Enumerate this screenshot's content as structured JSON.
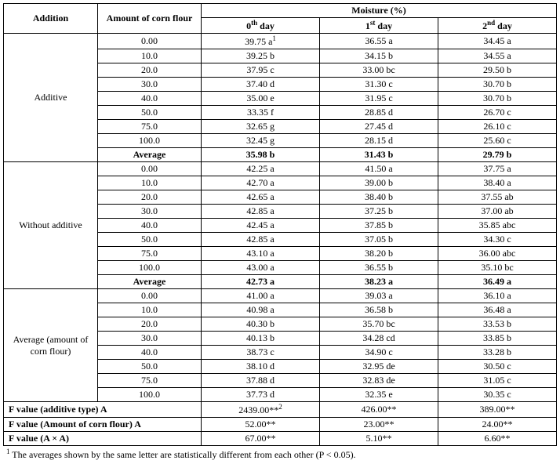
{
  "table": {
    "header": {
      "addition": "Addition",
      "amount": "Amount of corn flour",
      "moisture_group": "Moisture (%)",
      "day0_pre": "0",
      "day0_sup": "th",
      "day0_post": " day",
      "day1_pre": "1",
      "day1_sup": "st",
      "day1_post": " day",
      "day2_pre": "2",
      "day2_sup": "nd",
      "day2_post": " day"
    },
    "groups": [
      {
        "label": "Additive",
        "rows": [
          {
            "amt": "0.00",
            "d0_pre": "39.75 a",
            "d0_sup": "1",
            "d1": "36.55 a",
            "d2": "34.45 a"
          },
          {
            "amt": "10.0",
            "d0": "39.25 b",
            "d1": "34.15 b",
            "d2": "34.55 a"
          },
          {
            "amt": "20.0",
            "d0": "37.95 c",
            "d1": "33.00 bc",
            "d2": "29.50 b"
          },
          {
            "amt": "30.0",
            "d0": "37.40 d",
            "d1": "31.30 c",
            "d2": "30.70 b"
          },
          {
            "amt": "40.0",
            "d0": "35.00 e",
            "d1": "31.95 c",
            "d2": "30.70 b"
          },
          {
            "amt": "50.0",
            "d0": "33.35 f",
            "d1": "28.85 d",
            "d2": "26.70 c"
          },
          {
            "amt": "75.0",
            "d0": "32.65 g",
            "d1": "27.45 d",
            "d2": "26.10 c"
          },
          {
            "amt": "100.0",
            "d0": "32.45 g",
            "d1": "28.15 d",
            "d2": "25.60 c"
          }
        ],
        "average": {
          "label": "Average",
          "d0": "35.98 b",
          "d1": "31.43 b",
          "d2": "29.79 b"
        }
      },
      {
        "label": "Without additive",
        "rows": [
          {
            "amt": "0.00",
            "d0": "42.25 a",
            "d1": "41.50 a",
            "d2": "37.75 a"
          },
          {
            "amt": "10.0",
            "d0": "42.70 a",
            "d1": "39.00 b",
            "d2": "38.40 a"
          },
          {
            "amt": "20.0",
            "d0": "42.65 a",
            "d1": "38.40 b",
            "d2": "37.55 ab"
          },
          {
            "amt": "30.0",
            "d0": "42.85 a",
            "d1": "37.25 b",
            "d2": "37.00 ab"
          },
          {
            "amt": "40.0",
            "d0": "42.45 a",
            "d1": "37.85 b",
            "d2": "35.85 abc"
          },
          {
            "amt": "50.0",
            "d0": "42.85 a",
            "d1": "37.05 b",
            "d2": "34.30 c"
          },
          {
            "amt": "75.0",
            "d0": "43.10 a",
            "d1": "38.20 b",
            "d2": "36.00 abc"
          },
          {
            "amt": "100.0",
            "d0": "43.00 a",
            "d1": "36.55 b",
            "d2": "35.10 bc"
          }
        ],
        "average": {
          "label": "Average",
          "d0": "42.73 a",
          "d1": "38.23 a",
          "d2": "36.49 a"
        }
      },
      {
        "label": "Average (amount of corn flour)",
        "rows": [
          {
            "amt": "0.00",
            "d0": "41.00 a",
            "d1": "39.03 a",
            "d2": "36.10 a"
          },
          {
            "amt": "10.0",
            "d0": "40.98 a",
            "d1": "36.58 b",
            "d2": "36.48 a"
          },
          {
            "amt": "20.0",
            "d0": "40.30 b",
            "d1": "35.70 bc",
            "d2": "33.53 b"
          },
          {
            "amt": "30.0",
            "d0": "40.13 b",
            "d1": "34.28 cd",
            "d2": "33.85 b"
          },
          {
            "amt": "40.0",
            "d0": "38.73 c",
            "d1": "34.90 c",
            "d2": "33.28 b"
          },
          {
            "amt": "50.0",
            "d0": "38.10 d",
            "d1": "32.95 de",
            "d2": "30.50 c"
          },
          {
            "amt": "75.0",
            "d0": "37.88 d",
            "d1": "32.83 de",
            "d2": "31.05 c"
          },
          {
            "amt": "100.0",
            "d0": "37.73 d",
            "d1": "32.35 e",
            "d2": "30.35 c"
          }
        ]
      }
    ],
    "fvals": [
      {
        "label": "F value (additive type) A",
        "d0_pre": "2439.00**",
        "d0_sup": "2",
        "d1": "426.00**",
        "d2": "389.00**"
      },
      {
        "label": "F value (Amount of corn flour) A",
        "d0": "52.00**",
        "d1": "23.00**",
        "d2": "24.00**"
      },
      {
        "label": "F value (A × A)",
        "d0": "67.00**",
        "d1": "5.10**",
        "d2": "6.60**"
      }
    ]
  },
  "footnote_sup": "1",
  "footnote_text": " The averages shown by the same letter are statistically different from each other (P < 0.05)."
}
